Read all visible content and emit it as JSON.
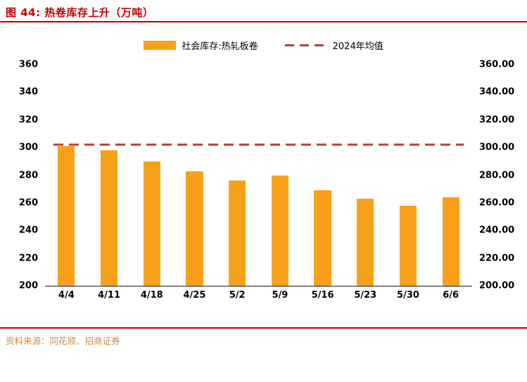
{
  "header": {
    "title": "图 44:  热卷库存上升（万吨）"
  },
  "colors": {
    "title_red": "#C00000",
    "bar_orange": "#F7A11A",
    "avg_dark_red": "#B04238",
    "source_tan": "#CD8A45"
  },
  "chart_data": {
    "type": "bar",
    "title": "热卷库存上升（万吨）",
    "categories": [
      "4/4",
      "4/11",
      "4/18",
      "4/25",
      "5/2",
      "5/9",
      "5/16",
      "5/23",
      "5/30",
      "6/6"
    ],
    "values": [
      301,
      298,
      290,
      283,
      276,
      280,
      269,
      263,
      258,
      264
    ],
    "average_line_value": 302,
    "ylim": [
      200,
      360
    ],
    "ytick_step": 20,
    "y_right_decimals": 2,
    "xlabel": "",
    "ylabel": "",
    "grid": "off",
    "legend_position": "top",
    "legend_entries": [
      "社会库存:热轧板卷",
      "2024年均值"
    ]
  },
  "footer": {
    "source": "资料来源：同花顺、招商证券"
  }
}
